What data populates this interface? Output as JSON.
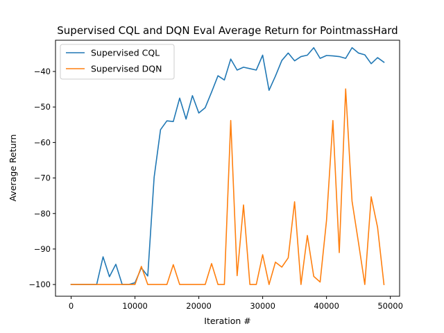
{
  "chart_data": {
    "type": "line",
    "title": "Supervised CQL and DQN Eval Average Return for PointmassHard",
    "xlabel": "Iteration #",
    "ylabel": "Average Return",
    "xlim": [
      -2450,
      51450
    ],
    "ylim": [
      -103.3,
      -31.2
    ],
    "xticks": [
      0,
      10000,
      20000,
      30000,
      40000,
      50000
    ],
    "xtick_labels": [
      "0",
      "10000",
      "20000",
      "30000",
      "40000",
      "50000"
    ],
    "yticks": [
      -100,
      -90,
      -80,
      -70,
      -60,
      -50,
      -40
    ],
    "ytick_labels": [
      "−100",
      "−90",
      "−80",
      "−70",
      "−60",
      "−50",
      "−40"
    ],
    "grid": false,
    "legend_position": "upper left",
    "x": [
      0,
      1000,
      2000,
      3000,
      4000,
      5000,
      6000,
      7000,
      8000,
      9000,
      10000,
      11000,
      12000,
      13000,
      14000,
      15000,
      16000,
      17000,
      18000,
      19000,
      20000,
      21000,
      22000,
      23000,
      24000,
      25000,
      26000,
      27000,
      28000,
      29000,
      30000,
      31000,
      32000,
      33000,
      34000,
      35000,
      36000,
      37000,
      38000,
      39000,
      40000,
      41000,
      42000,
      43000,
      44000,
      45000,
      46000,
      47000,
      48000,
      49000
    ],
    "series": [
      {
        "name": "Supervised CQL",
        "color": "#1f77b4",
        "values": [
          -100,
          -100,
          -100,
          -100,
          -100,
          -92.2,
          -97.8,
          -94.3,
          -100,
          -100,
          -99.5,
          -95.3,
          -97.6,
          -69.8,
          -56.4,
          -53.9,
          -54.1,
          -47.5,
          -53.4,
          -46.8,
          -51.7,
          -50.2,
          -45.8,
          -41.2,
          -42.4,
          -36.5,
          -39.6,
          -38.8,
          -39.2,
          -39.6,
          -35.4,
          -45.3,
          -41.3,
          -36.9,
          -34.8,
          -37.0,
          -35.8,
          -35.4,
          -33.3,
          -36.3,
          -35.5,
          -35.6,
          -35.8,
          -36.3,
          -33.3,
          -34.8,
          -35.3,
          -37.8,
          -36.1,
          -37.4
        ]
      },
      {
        "name": "Supervised DQN",
        "color": "#ff7f0e",
        "values": [
          -100,
          -100,
          -100,
          -100,
          -100,
          -100,
          -100,
          -100,
          -100,
          -100,
          -100,
          -94.9,
          -100,
          -100,
          -100,
          -100,
          -94.4,
          -100,
          -100,
          -100,
          -100,
          -100,
          -94.1,
          -100,
          -100,
          -53.8,
          -97.5,
          -77.6,
          -100,
          -100,
          -91.6,
          -100,
          -93.7,
          -95.1,
          -92.5,
          -76.7,
          -100,
          -86.2,
          -97.7,
          -99.3,
          -82.0,
          -53.8,
          -91.0,
          -44.9,
          -76.5,
          -88.1,
          -100,
          -75.3,
          -83.9,
          -100
        ]
      }
    ]
  }
}
